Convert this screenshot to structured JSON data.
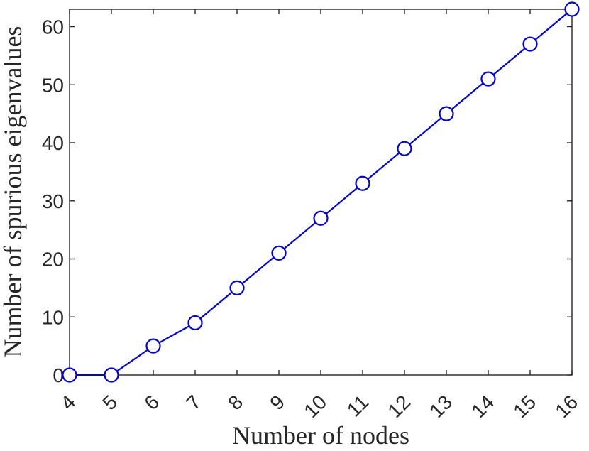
{
  "chart_data": {
    "type": "line",
    "title": "",
    "xlabel": "Number of nodes",
    "ylabel": "Number of spurious eigenvalues",
    "x": [
      4,
      5,
      6,
      7,
      8,
      9,
      10,
      11,
      12,
      13,
      14,
      15,
      16
    ],
    "series": [
      {
        "values": [
          0,
          0,
          5,
          9,
          15,
          21,
          27,
          33,
          39,
          45,
          51,
          57,
          63
        ]
      }
    ],
    "xlim": [
      4,
      16
    ],
    "ylim": [
      0,
      63
    ],
    "xticks": [
      4,
      5,
      6,
      7,
      8,
      9,
      10,
      11,
      12,
      13,
      14,
      15,
      16
    ],
    "xtick_labels": [
      "4",
      "5",
      "6",
      "7",
      "8",
      "9",
      "10",
      "11",
      "12",
      "13",
      "14",
      "15",
      "16"
    ],
    "yticks": [
      0,
      10,
      20,
      30,
      40,
      50,
      60
    ],
    "ytick_labels": [
      "0",
      "10",
      "20",
      "30",
      "40",
      "50",
      "60"
    ],
    "grid": false,
    "legend": "none",
    "colors": {
      "series": "#0000dd",
      "axes": "#262626"
    }
  }
}
